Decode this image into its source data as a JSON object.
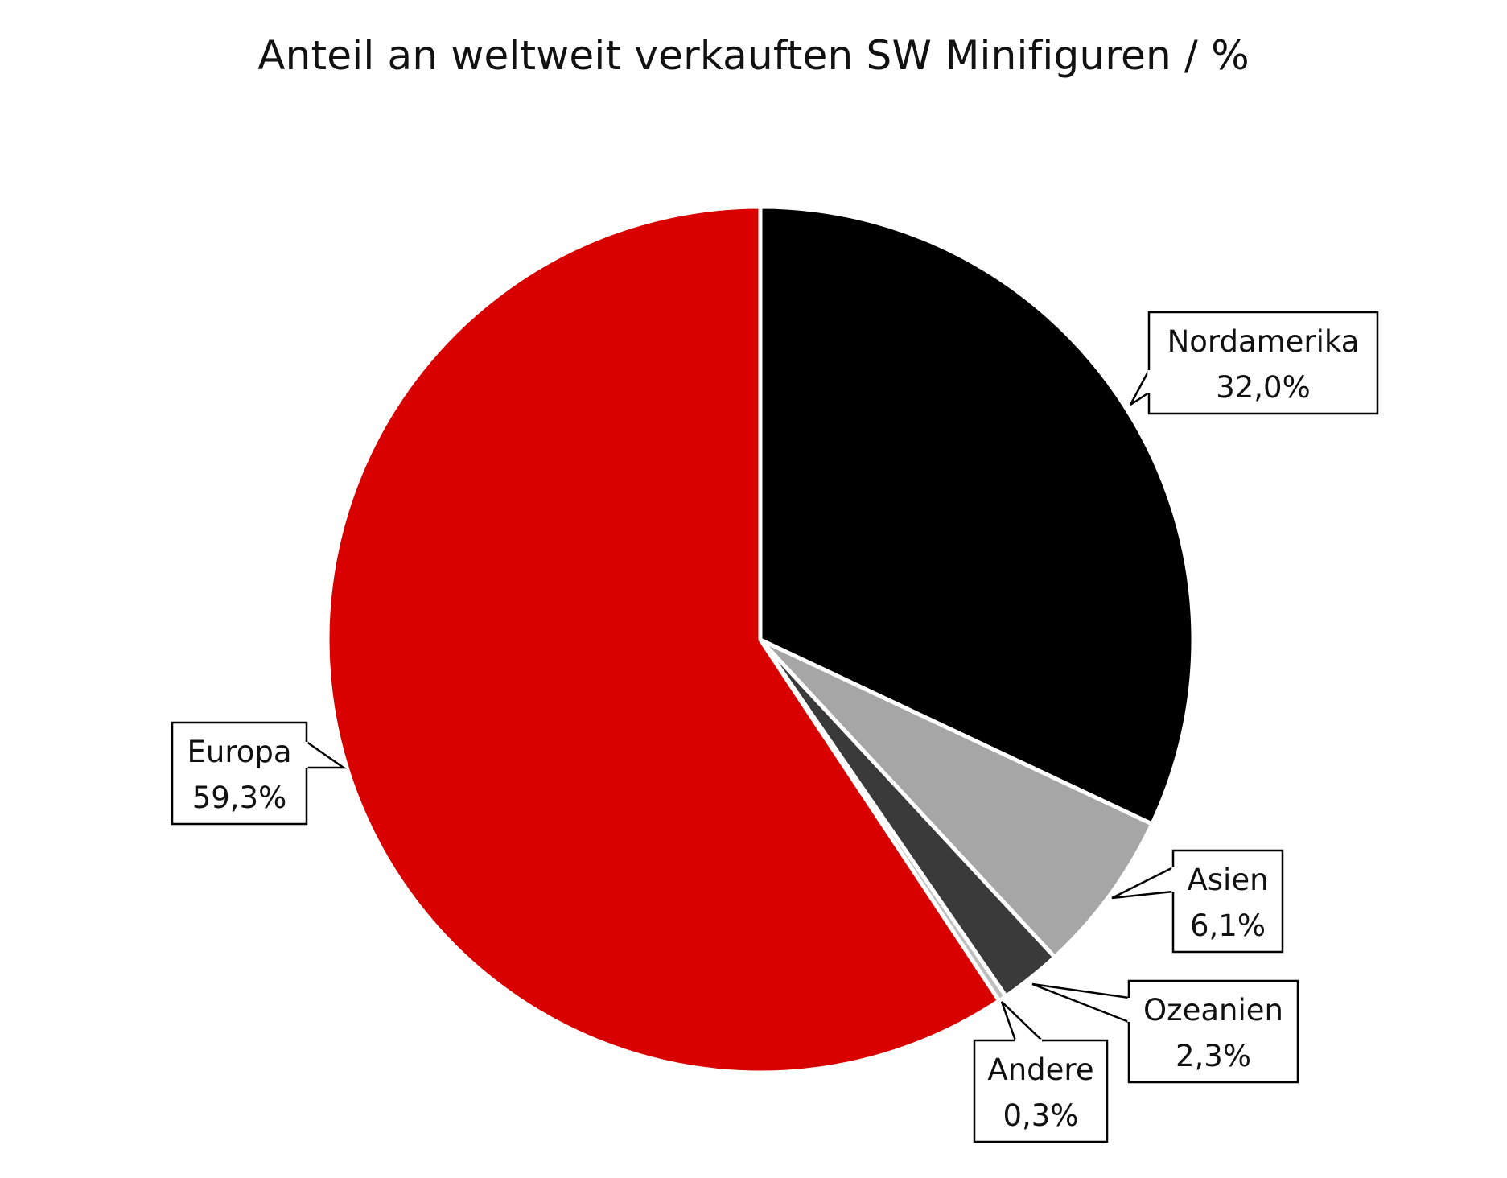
{
  "chart_data": {
    "type": "pie",
    "title": "Anteil an weltweit verkauften SW Minifiguren / %",
    "slices": [
      {
        "name": "Nordamerika",
        "value": 32.0,
        "label": "32,0%",
        "color": "#000000"
      },
      {
        "name": "Asien",
        "value": 6.1,
        "label": "6,1%",
        "color": "#a6a6a6"
      },
      {
        "name": "Ozeanien",
        "value": 2.3,
        "label": "2,3%",
        "color": "#3a3a3a"
      },
      {
        "name": "Andere",
        "value": 0.3,
        "label": "0,3%",
        "color": "#bfbfbf"
      },
      {
        "name": "Europa",
        "value": 59.3,
        "label": "59,3%",
        "color": "#d90000"
      }
    ],
    "start_angle": "12 o'clock",
    "direction": "clockwise",
    "legend": "none",
    "data_labels": "callouts"
  }
}
